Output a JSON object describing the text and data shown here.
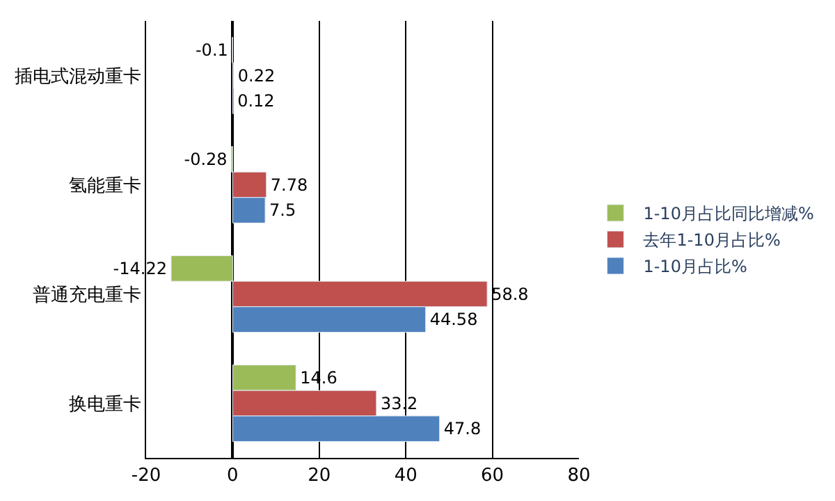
{
  "chart_data": {
    "type": "bar",
    "orientation": "horizontal",
    "categories": [
      "插电式混动重卡",
      "氢能重卡",
      "普通充电重卡",
      "换电重卡"
    ],
    "series": [
      {
        "name": "1-10月占比同比增减%",
        "color": "#9bbb59",
        "values": [
          -0.1,
          -0.28,
          -14.22,
          14.6
        ]
      },
      {
        "name": "去年1-10月占比%",
        "color": "#c0504d",
        "values": [
          0.22,
          7.78,
          58.8,
          33.2
        ]
      },
      {
        "name": "1-10月占比%",
        "color": "#4f81bd",
        "values": [
          0.12,
          7.5,
          44.58,
          47.8
        ]
      }
    ],
    "xlim": [
      -20,
      80
    ],
    "xticks": [
      -20,
      0,
      20,
      40,
      60,
      80
    ],
    "grid": "x",
    "legend": "right",
    "data_labels": true
  }
}
